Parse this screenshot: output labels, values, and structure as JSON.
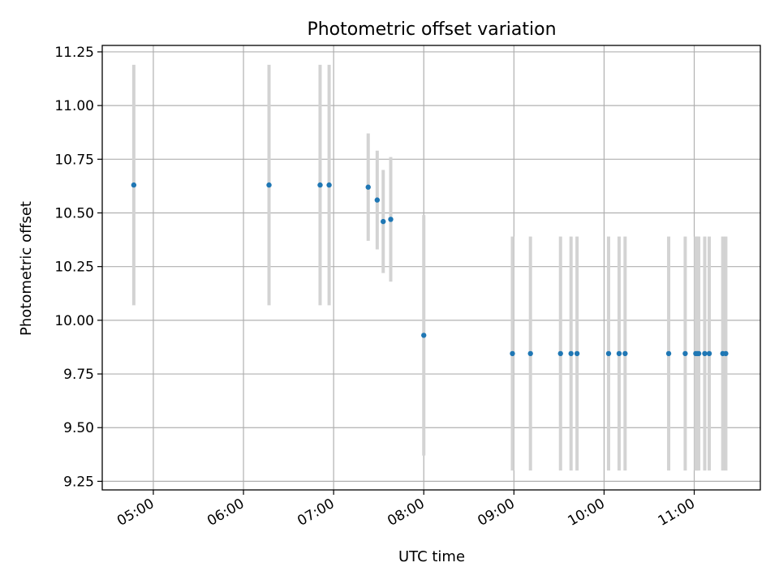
{
  "chart_data": {
    "type": "scatter",
    "title": "Photometric offset variation",
    "xlabel": "UTC time",
    "ylabel": "Photometric offset",
    "x_ticks": [
      "05:00",
      "06:00",
      "07:00",
      "08:00",
      "09:00",
      "10:00",
      "11:00"
    ],
    "y_ticks": [
      "9.25",
      "9.50",
      "9.75",
      "10.00",
      "10.25",
      "10.50",
      "10.75",
      "11.00",
      "11.25"
    ],
    "xlim": [
      "04:26",
      "11:44"
    ],
    "ylim": [
      9.21,
      11.28
    ],
    "grid": true,
    "marker_color": "#1f77b4",
    "errorbar_color": "#d3d3d3",
    "series": [
      {
        "points": [
          {
            "x": "04:47",
            "y": 10.63,
            "err": 0.56
          },
          {
            "x": "06:17",
            "y": 10.63,
            "err": 0.56
          },
          {
            "x": "06:51",
            "y": 10.63,
            "err": 0.56
          },
          {
            "x": "06:57",
            "y": 10.63,
            "err": 0.56
          },
          {
            "x": "07:23",
            "y": 10.62,
            "err": 0.25
          },
          {
            "x": "07:29",
            "y": 10.56,
            "err": 0.23
          },
          {
            "x": "07:33",
            "y": 10.46,
            "err": 0.24
          },
          {
            "x": "07:38",
            "y": 10.47,
            "err": 0.29
          },
          {
            "x": "08:00",
            "y": 9.93,
            "err": 0.56
          },
          {
            "x": "08:59",
            "y": 9.845,
            "err": 0.545
          },
          {
            "x": "09:11",
            "y": 9.845,
            "err": 0.545
          },
          {
            "x": "09:31",
            "y": 9.845,
            "err": 0.545
          },
          {
            "x": "09:38",
            "y": 9.845,
            "err": 0.545
          },
          {
            "x": "09:42",
            "y": 9.845,
            "err": 0.545
          },
          {
            "x": "10:03",
            "y": 9.845,
            "err": 0.545
          },
          {
            "x": "10:10",
            "y": 9.845,
            "err": 0.545
          },
          {
            "x": "10:14",
            "y": 9.845,
            "err": 0.545
          },
          {
            "x": "10:43",
            "y": 9.845,
            "err": 0.545
          },
          {
            "x": "10:54",
            "y": 9.845,
            "err": 0.545
          },
          {
            "x": "11:01",
            "y": 9.845,
            "err": 0.545
          },
          {
            "x": "11:02",
            "y": 9.845,
            "err": 0.545
          },
          {
            "x": "11:03",
            "y": 9.845,
            "err": 0.545
          },
          {
            "x": "11:07",
            "y": 9.845,
            "err": 0.545
          },
          {
            "x": "11:10",
            "y": 9.845,
            "err": 0.545
          },
          {
            "x": "11:19",
            "y": 9.845,
            "err": 0.545
          },
          {
            "x": "11:21",
            "y": 9.845,
            "err": 0.545
          }
        ]
      }
    ]
  }
}
